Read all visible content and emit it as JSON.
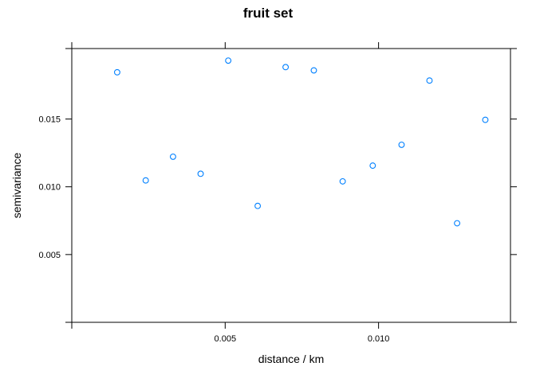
{
  "chart_data": {
    "type": "scatter",
    "title": "fruit set",
    "xlabel": "distance / km",
    "ylabel": "semivariance",
    "xlim": [
      0.0,
      0.0143
    ],
    "ylim": [
      0.0,
      0.0202
    ],
    "x_ticks": [
      0.005,
      0.01
    ],
    "x_tick_labels": [
      "0.005",
      "0.010"
    ],
    "y_ticks": [
      0.005,
      0.01,
      0.015
    ],
    "y_tick_labels": [
      "0.005",
      "0.010",
      "0.015"
    ],
    "grid": false,
    "point_color": "#0080ff",
    "points": [
      {
        "x": 0.00148,
        "y": 0.01845
      },
      {
        "x": 0.00241,
        "y": 0.01047
      },
      {
        "x": 0.0033,
        "y": 0.01222
      },
      {
        "x": 0.0042,
        "y": 0.01096
      },
      {
        "x": 0.0051,
        "y": 0.01931
      },
      {
        "x": 0.00606,
        "y": 0.00859
      },
      {
        "x": 0.00697,
        "y": 0.01883
      },
      {
        "x": 0.00789,
        "y": 0.01859
      },
      {
        "x": 0.00883,
        "y": 0.0104
      },
      {
        "x": 0.00981,
        "y": 0.01156
      },
      {
        "x": 0.01075,
        "y": 0.0131
      },
      {
        "x": 0.01166,
        "y": 0.01784
      },
      {
        "x": 0.01256,
        "y": 0.00731
      },
      {
        "x": 0.01348,
        "y": 0.01494
      }
    ]
  }
}
